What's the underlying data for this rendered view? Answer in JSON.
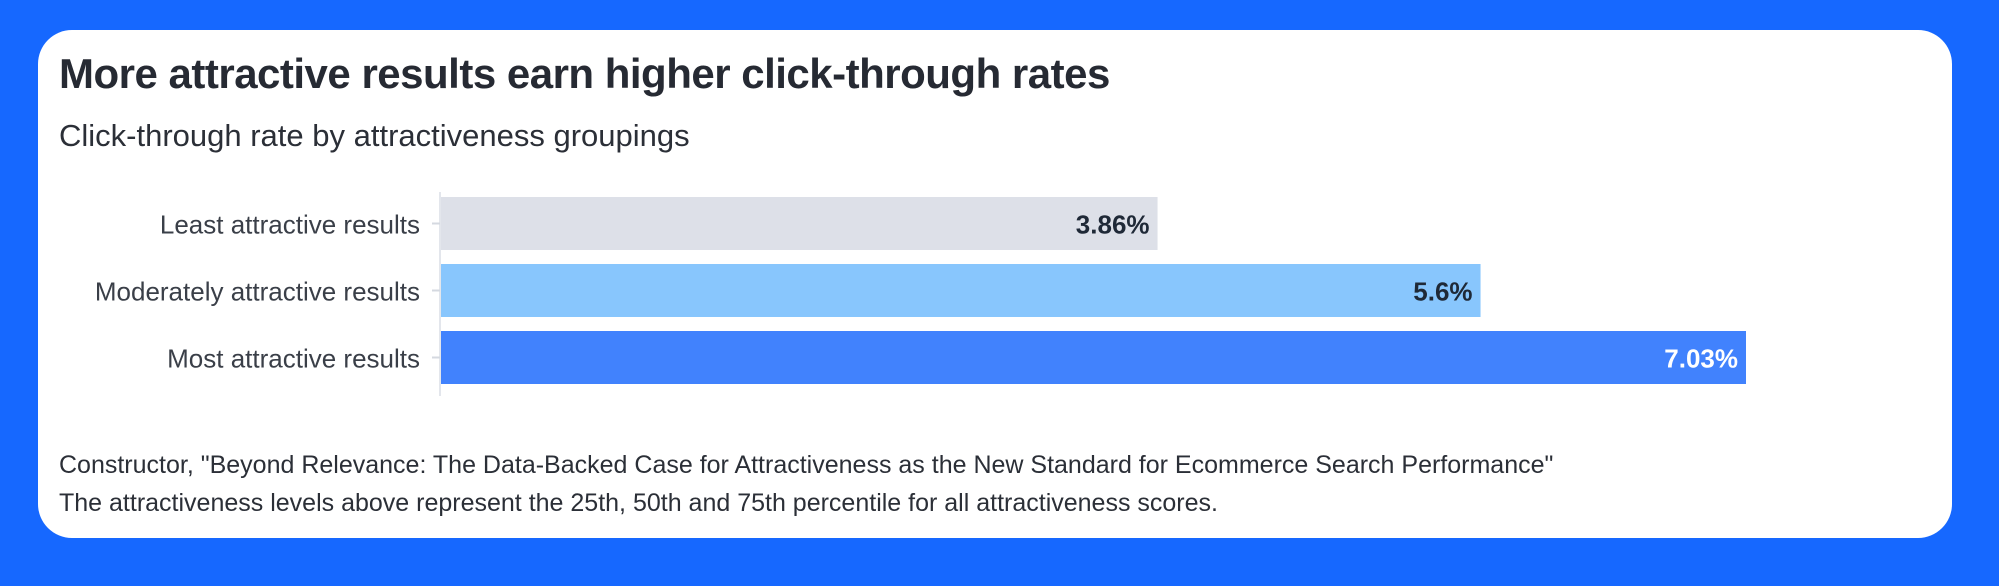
{
  "title": "More attractive results earn higher click-through rates",
  "subtitle": "Click-through rate by attractiveness groupings",
  "source_line": "Constructor, \"Beyond Relevance: The Data-Backed Case for Attractiveness as the New Standard for Ecommerce Search Performance\"",
  "note_line": "The attractiveness levels above represent the 25th, 50th and 75th percentile for all attractiveness scores.",
  "colors": {
    "background": "#1668FF",
    "card": "#FFFFFF",
    "least": "#DDE0E8",
    "moderate": "#88C6FD",
    "most": "#4182FD"
  },
  "chart_data": {
    "type": "bar",
    "orientation": "horizontal",
    "categories": [
      "Least attractive results",
      "Moderately attractive results",
      "Most attractive results"
    ],
    "values": [
      3.86,
      5.6,
      7.03
    ],
    "value_labels": [
      "3.86%",
      "5.6%",
      "7.03%"
    ],
    "bar_colors": [
      "#DDE0E8",
      "#88C6FD",
      "#4182FD"
    ],
    "label_colors": [
      "#1F2937",
      "#1F2937",
      "#FFFFFF"
    ],
    "xlim": [
      0,
      7.03
    ],
    "grid": false,
    "legend": "none",
    "title": "More attractive results earn higher click-through rates",
    "subtitle": "Click-through rate by attractiveness groupings"
  }
}
